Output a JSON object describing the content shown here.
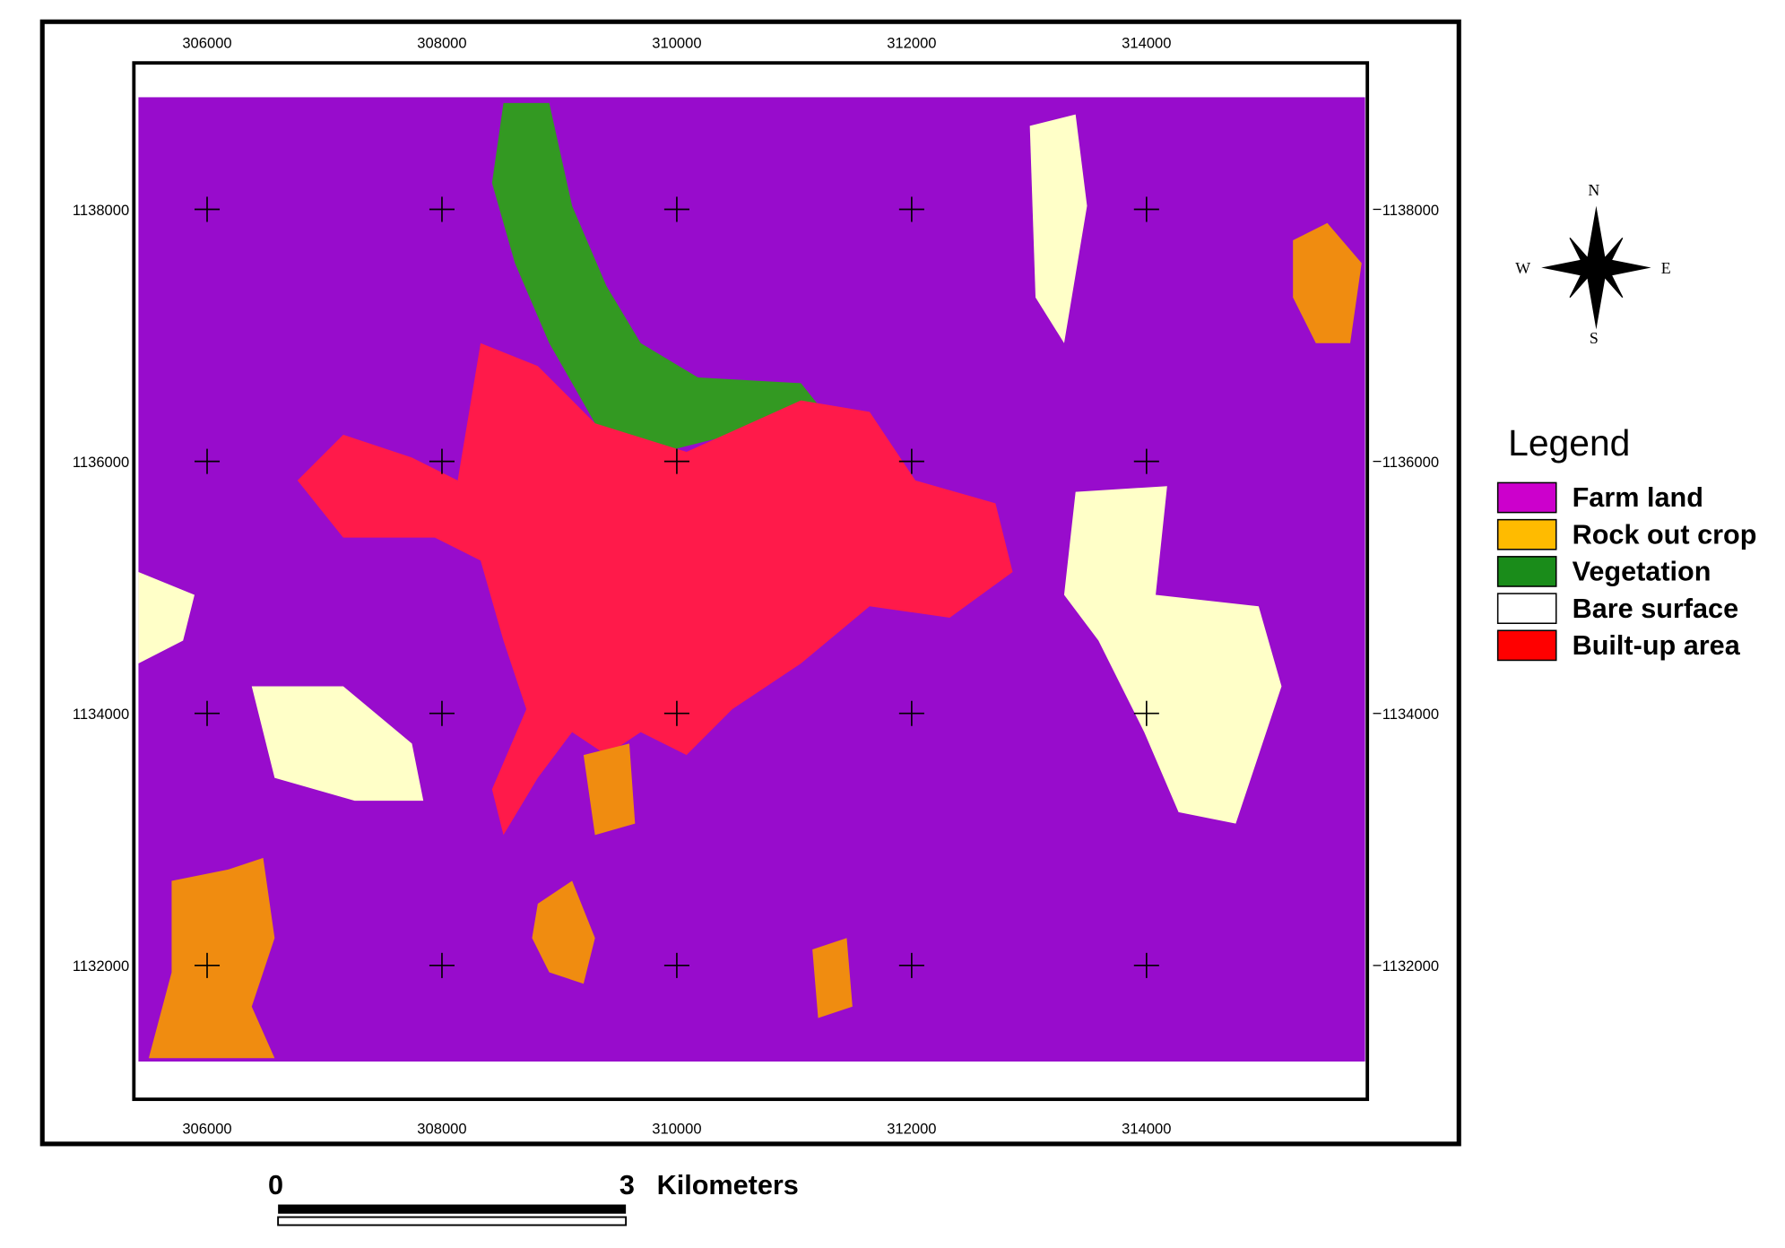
{
  "map": {
    "x_ticks": [
      306000,
      308000,
      310000,
      312000,
      314000
    ],
    "y_ticks": [
      1138000,
      1136000,
      1134000,
      1132000
    ],
    "compass": {
      "north": "N",
      "south": "S",
      "east": "E",
      "west": "W"
    },
    "legend": {
      "title": "Legend",
      "items": [
        {
          "label": "Farm land",
          "color": "#cc00cc"
        },
        {
          "label": "Rock out crop",
          "color": "#ffbb00"
        },
        {
          "label": "Vegetation",
          "color": "#1a8c1a"
        },
        {
          "label": "Bare surface",
          "color": "#ffffff"
        },
        {
          "label": "Built-up area",
          "color": "#ff0000"
        }
      ]
    },
    "scale_bar": {
      "start": "0",
      "end": "3",
      "unit": "Kilometers"
    }
  }
}
